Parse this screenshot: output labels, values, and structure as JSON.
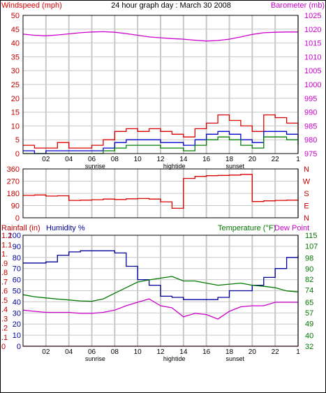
{
  "title": "24 hour graph day : March 30 2008",
  "colors": {
    "windspeed": "#dd0000",
    "gust": "#dd0000",
    "average": "#0000cc",
    "wind_green": "#008000",
    "barometer": "#cc00cc",
    "direction": "#dd0000",
    "humidity": "#000099",
    "temperature": "#007700",
    "dewpoint": "#cc00cc",
    "rainfall": "#dd0000",
    "frame": "#000000",
    "grid": "#c8c8c8"
  },
  "hour_labels": [
    "02",
    "04",
    "06",
    "08",
    "10",
    "12",
    "14",
    "16",
    "18",
    "20",
    "22",
    "1"
  ],
  "markers": {
    "sunrise": "sunrise",
    "hightide": "hightide",
    "sunset": "sunset"
  },
  "chart_data": [
    {
      "type": "line",
      "name": "wind-barometer",
      "title": "24 hour graph day : March 30 2008",
      "ylabel_left": "Windspeed (mph)",
      "ylabel_right": "Barometer (mb)",
      "xlabels": [
        "02",
        "04",
        "06",
        "08",
        "10",
        "12",
        "14",
        "16",
        "18",
        "20",
        "22",
        "1"
      ],
      "ylim_left": [
        0,
        50
      ],
      "yticks_left": [
        0,
        5,
        10,
        15,
        20,
        25,
        30,
        35,
        40,
        45,
        50
      ],
      "ylim_right": [
        975,
        1025
      ],
      "yticks_right": [
        975,
        980,
        985,
        990,
        995,
        1000,
        1005,
        1010,
        1015,
        1020,
        1025
      ],
      "grid": true,
      "x": [
        0,
        1,
        2,
        3,
        4,
        5,
        6,
        7,
        8,
        9,
        10,
        11,
        12,
        13,
        14,
        15,
        16,
        17,
        18,
        19,
        20,
        21,
        22,
        23,
        24
      ],
      "series": [
        {
          "name": "Windspeed (mph)",
          "axis": "left",
          "values": [
            3,
            2,
            2,
            4,
            2,
            2,
            3,
            5,
            8,
            9,
            8,
            9,
            8,
            7,
            6,
            9,
            11,
            14,
            12,
            10,
            8,
            14,
            13,
            11,
            8
          ]
        },
        {
          "name": "Windspeed (mph)",
          "axis": "left",
          "values": [
            1,
            0,
            1,
            1,
            1,
            1,
            1,
            2,
            4,
            5,
            5,
            5,
            4,
            4,
            3,
            5,
            7,
            8,
            7,
            5,
            4,
            8,
            8,
            7,
            5
          ]
        },
        {
          "name": "Windspeed (mph)",
          "axis": "left",
          "values": [
            0,
            0,
            0,
            0,
            0,
            0,
            0,
            1,
            2,
            3,
            3,
            3,
            2,
            2,
            1,
            3,
            5,
            6,
            5,
            3,
            2,
            6,
            6,
            5,
            3
          ]
        },
        {
          "name": "Barometer (mb)",
          "axis": "right",
          "values": [
            1018.2,
            1017.8,
            1017.6,
            1017.9,
            1018.3,
            1018.7,
            1019.0,
            1019.1,
            1018.9,
            1018.4,
            1017.8,
            1017.2,
            1016.9,
            1016.6,
            1016.4,
            1016.0,
            1015.7,
            1015.9,
            1016.4,
            1017.2,
            1018.1,
            1018.7,
            1018.9,
            1019.0,
            1019.0
          ]
        }
      ]
    },
    {
      "type": "line",
      "name": "wind-direction",
      "ylim": [
        0,
        360
      ],
      "yticks": [
        0,
        90,
        180,
        270,
        360
      ],
      "right_labels": [
        "N",
        "W",
        "S",
        "E",
        "N"
      ],
      "grid": true,
      "x": [
        0,
        1,
        2,
        3,
        4,
        5,
        6,
        7,
        8,
        9,
        10,
        11,
        12,
        13,
        14,
        15,
        16,
        17,
        18,
        19,
        20,
        21,
        22,
        23,
        24
      ],
      "series": [
        {
          "name": "Wind direction",
          "values": [
            165,
            168,
            160,
            162,
            128,
            130,
            133,
            138,
            135,
            140,
            142,
            138,
            118,
            70,
            290,
            305,
            310,
            312,
            315,
            320,
            120,
            125,
            128,
            130,
            135
          ]
        }
      ]
    },
    {
      "type": "line",
      "name": "humidity-temperature",
      "ylabel_left_rain": "Rainfall (in)",
      "ylabel_left_humidity": "Humidity %",
      "ylabel_right": "Temperature (°F)",
      "ylabel_right2": "Dew Point",
      "xlabels": [
        "02",
        "04",
        "06",
        "08",
        "10",
        "12",
        "14",
        "16",
        "18",
        "20",
        "22",
        "1"
      ],
      "ylim_rain": [
        0,
        1.2
      ],
      "yticks_rain": [
        "0",
        ".1",
        ".2",
        ".3",
        ".4",
        ".5",
        ".6",
        ".7",
        ".8",
        ".9",
        "1.",
        "1.1",
        "1.2"
      ],
      "ylim_humidity": [
        0,
        100
      ],
      "yticks_humidity": [
        0,
        10,
        20,
        30,
        40,
        50,
        60,
        70,
        80,
        90,
        100
      ],
      "ylim_right": [
        32,
        115
      ],
      "yticks_right": [
        32,
        40,
        49,
        57,
        65,
        74,
        82,
        90,
        98,
        107,
        115
      ],
      "grid": true,
      "x": [
        0,
        1,
        2,
        3,
        4,
        5,
        6,
        7,
        8,
        9,
        10,
        11,
        12,
        13,
        14,
        15,
        16,
        17,
        18,
        19,
        20,
        21,
        22,
        23,
        24
      ],
      "series": [
        {
          "name": "Humidity %",
          "axis": "humidity",
          "values": [
            75,
            75,
            76,
            82,
            85,
            86,
            86,
            86,
            84,
            72,
            60,
            55,
            45,
            44,
            42,
            42,
            42,
            44,
            50,
            50,
            55,
            62,
            70,
            80,
            82
          ]
        },
        {
          "name": "Temperature (°F)",
          "axis": "right",
          "values": [
            70.5,
            69.0,
            68.1,
            67.3,
            66.6,
            65.9,
            65.6,
            67.4,
            71.6,
            75.8,
            80.0,
            81.6,
            82.9,
            84.2,
            80.8,
            80.8,
            79.2,
            77.6,
            78.4,
            79.2,
            77.6,
            76.8,
            75.8,
            73.4,
            72.6
          ]
        },
        {
          "name": "Dew Point",
          "axis": "right",
          "values": [
            59.0,
            58.1,
            57.3,
            57.3,
            57.3,
            56.6,
            56.6,
            57.3,
            59.0,
            62.3,
            64.9,
            67.4,
            62.3,
            60.7,
            54.0,
            56.6,
            55.7,
            52.3,
            58.1,
            61.5,
            62.3,
            62.3,
            64.9,
            64.9,
            64.9
          ]
        },
        {
          "name": "Rainfall (in)",
          "axis": "rain",
          "values": [
            0,
            0,
            0,
            0,
            0,
            0,
            0,
            0,
            0,
            0,
            0,
            0,
            0,
            0,
            0,
            0,
            0,
            0,
            0,
            0,
            0,
            0,
            0,
            0,
            0
          ]
        }
      ]
    }
  ]
}
